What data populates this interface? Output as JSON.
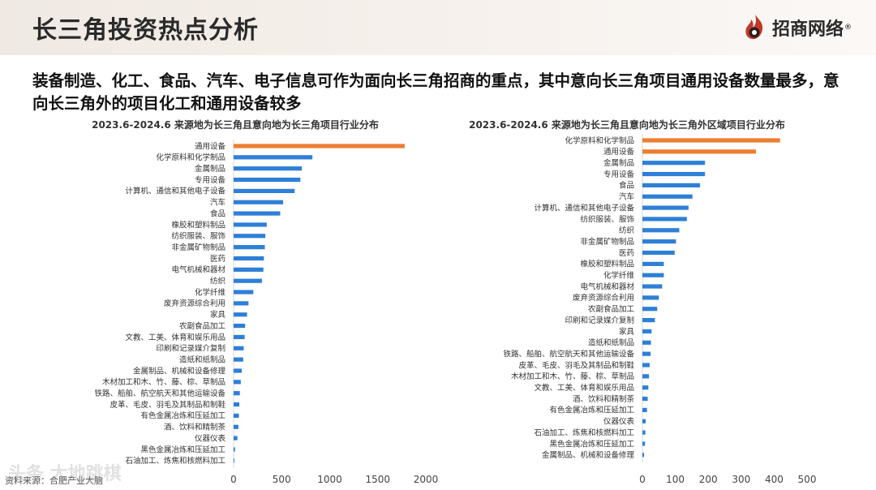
{
  "header": {
    "title": "长三角投资热点分析",
    "logo_text": "招商网络",
    "logo_reg": "®"
  },
  "headline": "装备制造、化工、食品、汽车、电子信息可作为面向长三角招商的重点，其中意向长三角项目通用设备数量最多，意向长三角外的项目化工和通用设备较多",
  "footer": {
    "source": "资料来源：合肥产业大脑",
    "watermark": "头条 大地跳棋"
  },
  "colors": {
    "highlight": "#ed7d31",
    "bar": "#2e7fd7"
  },
  "chart_data": [
    {
      "type": "bar",
      "orientation": "horizontal",
      "title": "2023.6-2024.6 来源地为长三角且意向地为长三角项目行业分布",
      "xlim": [
        0,
        2000
      ],
      "xticks": [
        0,
        500,
        1000,
        1500,
        2000
      ],
      "categories": [
        "通用设备",
        "化学原料和化学制品",
        "金属制品",
        "专用设备",
        "计算机、通信和其他电子设备",
        "汽车",
        "食品",
        "橡胶和塑料制品",
        "纺织服装、服饰",
        "非金属矿物制品",
        "医药",
        "电气机械和器材",
        "纺织",
        "化学纤维",
        "废弃资源综合利用",
        "家具",
        "农副食品加工",
        "文教、工美、体育和娱乐用品",
        "印刷和记录媒介复制",
        "造纸和纸制品",
        "金属制品、机械和设备修理",
        "木材加工和木、竹、藤、棕、草制品",
        "铁路、船舶、航空航天和其他运输设备",
        "皮革、毛皮、羽毛及其制品和制鞋",
        "有色金属冶炼和压延加工",
        "酒、饮料和精制茶",
        "仪器仪表",
        "黑色金属冶炼和压延加工",
        "石油加工、炼焦和核燃料加工"
      ],
      "values": [
        1780,
        820,
        710,
        695,
        635,
        515,
        485,
        345,
        330,
        325,
        315,
        310,
        295,
        205,
        155,
        140,
        120,
        115,
        105,
        100,
        85,
        75,
        65,
        60,
        55,
        50,
        40,
        15,
        8
      ],
      "highlight_index": 0
    },
    {
      "type": "bar",
      "orientation": "horizontal",
      "title": "2023.6-2024.6 来源地为长三角且意向地为长三角外区域项目行业分布",
      "xlim": [
        0,
        500
      ],
      "xticks": [
        0,
        100,
        200,
        300,
        400,
        500
      ],
      "categories": [
        "化学原料和化学制品",
        "通用设备",
        "金属制品",
        "专用设备",
        "食品",
        "汽车",
        "计算机、通信和其他电子设备",
        "纺织服装、服饰",
        "纺织",
        "非金属矿物制品",
        "医药",
        "橡胶和塑料制品",
        "化学纤维",
        "电气机械和器材",
        "废弃资源综合利用",
        "农副食品加工",
        "印刷和记录媒介复制",
        "家具",
        "造纸和纸制品",
        "铁路、船舶、航空航天和其他运输设备",
        "皮革、毛皮、羽毛及其制品和制鞋",
        "木材加工和木、竹、藤、棕、草制品",
        "文教、工美、体育和娱乐用品",
        "酒、饮料和精制茶",
        "有色金属冶炼和压延加工",
        "仪器仪表",
        "石油加工、炼焦和核燃料加工",
        "黑色金属冶炼和压延加工",
        "金属制品、机械和设备修理"
      ],
      "values": [
        418,
        345,
        190,
        190,
        175,
        152,
        140,
        135,
        112,
        102,
        98,
        65,
        65,
        60,
        50,
        45,
        38,
        28,
        26,
        25,
        22,
        20,
        18,
        16,
        14,
        10,
        9,
        8,
        5
      ],
      "highlight_indices": [
        0,
        1
      ]
    }
  ]
}
